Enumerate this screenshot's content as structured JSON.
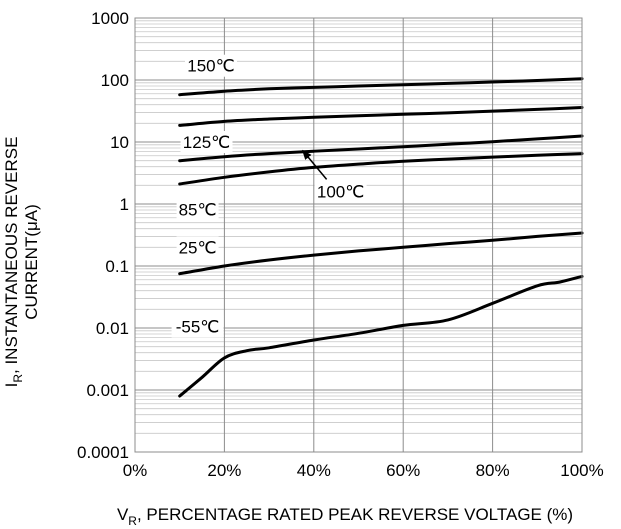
{
  "chart_data": {
    "type": "line",
    "title": "",
    "xlabel": "V_R, PERCENTAGE RATED PEAK REVERSE VOLTAGE (%)",
    "xlabel_parts": {
      "main": "V",
      "sub": "R",
      "rest": ", PERCENTAGE RATED PEAK REVERSE VOLTAGE (%)"
    },
    "ylabel_line1_parts": {
      "main": "I",
      "sub": "R",
      "rest": ", INSTANTANEOUS REVERSE"
    },
    "ylabel_line2": "CURRENT(μA)",
    "x_scale": "linear",
    "y_scale": "log",
    "xlim": [
      0,
      100
    ],
    "ylim": [
      0.0001,
      1000
    ],
    "grid": {
      "major": true,
      "minor_y": true
    },
    "x_ticks": [
      {
        "value": 0,
        "label": "0%"
      },
      {
        "value": 20,
        "label": "20%"
      },
      {
        "value": 40,
        "label": "40%"
      },
      {
        "value": 60,
        "label": "60%"
      },
      {
        "value": 80,
        "label": "80%"
      },
      {
        "value": 100,
        "label": "100%"
      }
    ],
    "y_ticks": [
      {
        "value": 1000,
        "label": "1000"
      },
      {
        "value": 100,
        "label": "100"
      },
      {
        "value": 10,
        "label": "10"
      },
      {
        "value": 1,
        "label": "1"
      },
      {
        "value": 0.1,
        "label": "0.1"
      },
      {
        "value": 0.01,
        "label": "0.01"
      },
      {
        "value": 0.001,
        "label": "0.001"
      },
      {
        "value": 0.0001,
        "label": "0.0001"
      }
    ],
    "series": [
      {
        "name": "150℃",
        "x": [
          10,
          20,
          30,
          40,
          50,
          60,
          70,
          80,
          90,
          100
        ],
        "y": [
          58,
          66,
          72,
          76,
          80,
          84,
          88,
          93,
          98,
          105
        ]
      },
      {
        "name": "125℃ (upper)",
        "x": [
          10,
          20,
          30,
          40,
          50,
          60,
          70,
          80,
          90,
          100
        ],
        "y": [
          18.5,
          21.5,
          23.5,
          25,
          26.5,
          28,
          29.5,
          31.5,
          33.5,
          36
        ]
      },
      {
        "name": "125℃",
        "x": [
          10,
          20,
          30,
          40,
          50,
          60,
          70,
          80,
          90,
          100
        ],
        "y": [
          5.0,
          5.8,
          6.5,
          7.1,
          7.7,
          8.4,
          9.2,
          10.1,
          11.2,
          12.5
        ]
      },
      {
        "name": "100℃",
        "x": [
          10,
          20,
          30,
          40,
          50,
          60,
          70,
          80,
          90,
          100
        ],
        "y": [
          2.1,
          2.7,
          3.3,
          3.9,
          4.4,
          4.9,
          5.3,
          5.7,
          6.1,
          6.5
        ]
      },
      {
        "name": "25℃",
        "x": [
          10,
          20,
          30,
          40,
          50,
          60,
          70,
          80,
          90,
          100
        ],
        "y": [
          0.075,
          0.1,
          0.125,
          0.15,
          0.175,
          0.2,
          0.23,
          0.26,
          0.3,
          0.34
        ]
      },
      {
        "name": "-55℃",
        "x": [
          10,
          15,
          20,
          25,
          30,
          40,
          50,
          60,
          70,
          80,
          90,
          95,
          100
        ],
        "y": [
          0.0008,
          0.0016,
          0.0033,
          0.0043,
          0.0048,
          0.0064,
          0.0082,
          0.011,
          0.0135,
          0.025,
          0.048,
          0.055,
          0.068
        ]
      }
    ],
    "annotations": [
      {
        "text": "150℃",
        "x": 17,
        "y": 170
      },
      {
        "text": "125℃",
        "x": 16,
        "y": 10
      },
      {
        "text": "100℃",
        "x": 46,
        "y": 1.6,
        "arrow_to": {
          "x": 37.5,
          "y": 7.3
        }
      },
      {
        "text": "85℃",
        "x": 14,
        "y": 0.82
      },
      {
        "text": "25℃",
        "x": 14,
        "y": 0.2
      },
      {
        "text": "-55℃",
        "x": 14,
        "y": 0.0105
      }
    ]
  }
}
